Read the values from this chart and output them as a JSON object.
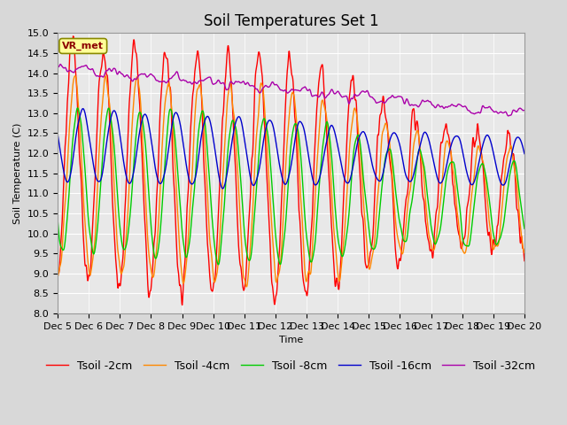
{
  "title": "Soil Temperatures Set 1",
  "xlabel": "Time",
  "ylabel": "Soil Temperature (C)",
  "ylim": [
    8.0,
    15.0
  ],
  "yticks": [
    8.0,
    8.5,
    9.0,
    9.5,
    10.0,
    10.5,
    11.0,
    11.5,
    12.0,
    12.5,
    13.0,
    13.5,
    14.0,
    14.5,
    15.0
  ],
  "xtick_labels": [
    "Dec 5",
    "Dec 6",
    "Dec 7",
    "Dec 8",
    "Dec 9",
    "Dec 10",
    "Dec 11",
    "Dec 12",
    "Dec 13",
    "Dec 14",
    "Dec 15",
    "Dec 16",
    "Dec 17",
    "Dec 18",
    "Dec 19",
    "Dec 20"
  ],
  "colors": {
    "Tsoil -2cm": "#ff0000",
    "Tsoil -4cm": "#ff8800",
    "Tsoil -8cm": "#00cc00",
    "Tsoil -16cm": "#0000cc",
    "Tsoil -32cm": "#aa00aa"
  },
  "legend_labels": [
    "Tsoil -2cm",
    "Tsoil -4cm",
    "Tsoil -8cm",
    "Tsoil -16cm",
    "Tsoil -32cm"
  ],
  "station_label": "VR_met",
  "plot_bg_color": "#e8e8e8",
  "n_points": 1440,
  "grid_color": "#ffffff",
  "linewidth": 1.0,
  "title_fontsize": 12,
  "label_fontsize": 8,
  "legend_fontsize": 9
}
